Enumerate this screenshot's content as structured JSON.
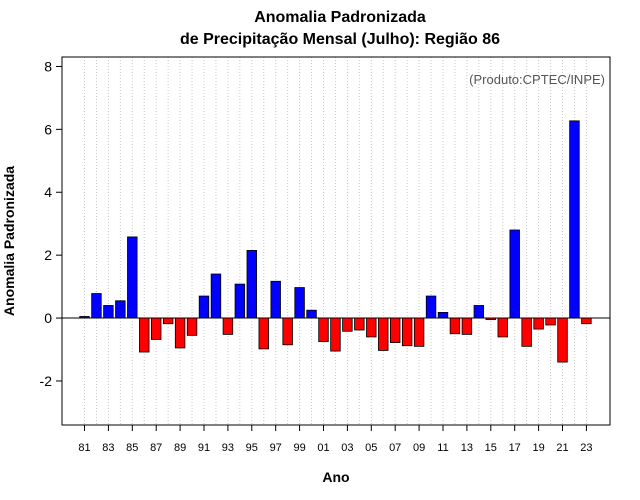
{
  "chart_data": {
    "type": "bar",
    "title_line1": "Anomalia Padronizada",
    "title_line2": "de Precipitação Mensal (Julho): Região 86",
    "xlabel": "Ano",
    "ylabel": "Anomalia Padronizada",
    "watermark": "(Produto:CPTEC/INPE)",
    "ylim": [
      -3.4,
      8.3
    ],
    "yticks": [
      -2,
      0,
      2,
      4,
      6,
      8
    ],
    "grid": "vertical-dotted",
    "positive_color": "#0000ff",
    "negative_color": "#ff0000",
    "years": [
      1981,
      1982,
      1983,
      1984,
      1985,
      1986,
      1987,
      1988,
      1989,
      1990,
      1991,
      1992,
      1993,
      1994,
      1995,
      1996,
      1997,
      1998,
      1999,
      2000,
      2001,
      2002,
      2003,
      2004,
      2005,
      2006,
      2007,
      2008,
      2009,
      2010,
      2011,
      2012,
      2013,
      2014,
      2015,
      2016,
      2017,
      2018,
      2019,
      2020,
      2021,
      2022,
      2023
    ],
    "values": [
      0.05,
      0.78,
      0.4,
      0.55,
      2.58,
      -1.08,
      -0.68,
      -0.18,
      -0.95,
      -0.55,
      0.7,
      1.4,
      -0.52,
      1.08,
      2.15,
      -0.98,
      1.17,
      -0.85,
      0.97,
      0.25,
      -0.75,
      -1.05,
      -0.42,
      -0.38,
      -0.6,
      -1.03,
      -0.78,
      -0.88,
      -0.9,
      0.7,
      0.18,
      -0.5,
      -0.52,
      0.4,
      -0.05,
      -0.6,
      2.8,
      -0.9,
      -0.35,
      -0.22,
      -1.4,
      6.27,
      -0.18
    ],
    "xtick_labels": [
      "81",
      "83",
      "85",
      "87",
      "89",
      "91",
      "93",
      "95",
      "97",
      "99",
      "01",
      "03",
      "05",
      "07",
      "09",
      "11",
      "13",
      "15",
      "17",
      "19",
      "21",
      "23"
    ]
  }
}
